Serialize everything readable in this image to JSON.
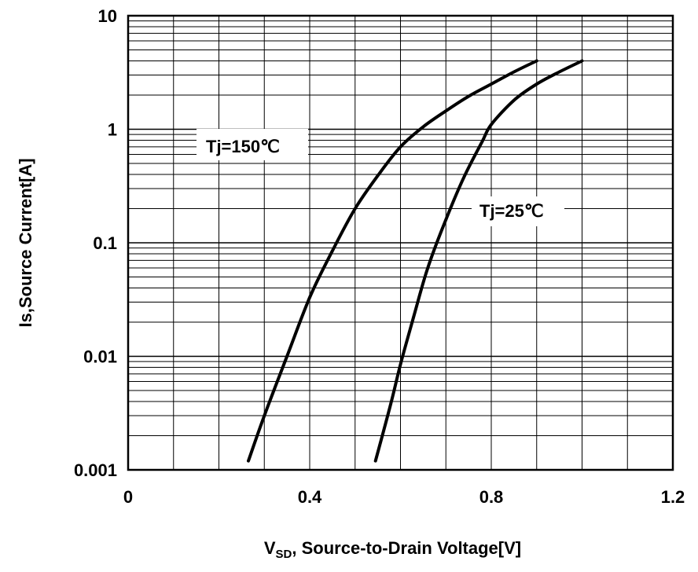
{
  "chart_data": {
    "type": "line",
    "title": "",
    "xlabel_main": "V",
    "xlabel_sub": "SD",
    "xlabel_rest": ",  Source-to-Drain  Voltage[V]",
    "ylabel": "Is,Source Current[A]",
    "x_scale": "linear",
    "y_scale": "log",
    "xlim": [
      0,
      1.2
    ],
    "ylim": [
      0.001,
      10
    ],
    "x_ticks": [
      0,
      0.4,
      0.8,
      1.2
    ],
    "x_tick_labels": [
      "0",
      "0.4",
      "0.8",
      "1.2"
    ],
    "y_ticks": [
      0.001,
      0.01,
      0.1,
      1,
      10
    ],
    "y_tick_labels": [
      "0.001",
      "0.01",
      "0.1",
      "1",
      "10"
    ],
    "x_minor_step": 0.1,
    "grid": true,
    "series": [
      {
        "name": "Tj=150℃",
        "x": [
          0.265,
          0.3,
          0.35,
          0.4,
          0.45,
          0.5,
          0.55,
          0.6,
          0.65,
          0.7,
          0.75,
          0.8,
          0.85,
          0.9
        ],
        "y": [
          0.0012,
          0.003,
          0.01,
          0.033,
          0.085,
          0.2,
          0.39,
          0.7,
          1.05,
          1.45,
          1.95,
          2.5,
          3.2,
          4.0
        ]
      },
      {
        "name": "Tj=25℃",
        "x": [
          0.545,
          0.58,
          0.6,
          0.63,
          0.66,
          0.7,
          0.74,
          0.78,
          0.8,
          0.85,
          0.9,
          0.95,
          1.0
        ],
        "y": [
          0.0012,
          0.004,
          0.0085,
          0.023,
          0.06,
          0.16,
          0.38,
          0.78,
          1.1,
          1.8,
          2.5,
          3.2,
          4.0
        ]
      }
    ],
    "annotations": [
      {
        "text": "Tj=150℃",
        "series": "Tj=150℃"
      },
      {
        "text": "Tj=25℃",
        "series": "Tj=25℃"
      }
    ]
  }
}
